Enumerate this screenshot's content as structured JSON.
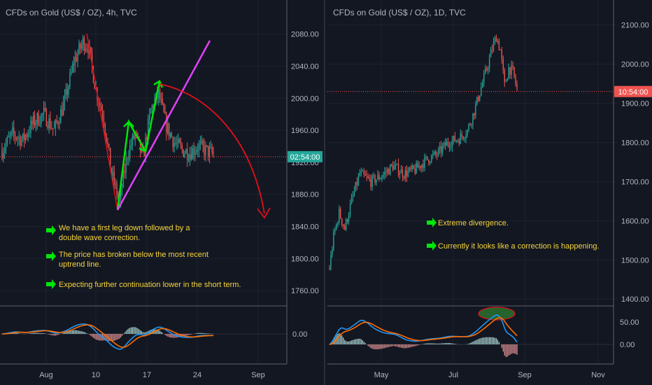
{
  "colors": {
    "background": "#131722",
    "grid": "#1e2230",
    "divider": "#5d606b",
    "axis_text": "#b2b5be",
    "candle_up": "#26a69a",
    "candle_down": "#ef5350",
    "price_line": "#ef5350",
    "price_label_left": "#26a69a",
    "price_label_right": "#ef5350",
    "macd": "#2196f3",
    "signal": "#ff6d00",
    "annotation_text": "#f5d43b",
    "arrow_green": "#00e60a",
    "drawing_red": "#e0101a",
    "drawing_magenta": "#e040fb",
    "drawing_green": "#00e60a",
    "ellipse_fill": "#2e7d32"
  },
  "chart_data": [
    {
      "type": "candlestick",
      "title": "CFDs on Gold (US$ / OZ), 4h, TVC",
      "x_tick_labels": [
        "Aug",
        "10",
        "17",
        "24",
        "Sep"
      ],
      "y_tick_values": [
        1760,
        1800,
        1840,
        1880,
        1920,
        1960,
        2000,
        2040,
        2080
      ],
      "y_tick_labels": [
        "1760.00",
        "1800.00",
        "1840.00",
        "1880.00",
        "1920.00",
        "1960.00",
        "2000.00",
        "2040.00",
        "2080.00"
      ],
      "ylim": [
        1747,
        2105
      ],
      "current_price": 1927,
      "price_label": "02:54:00",
      "indicator_tick_labels": [
        "0.00"
      ],
      "annotations": [
        "We have a first leg down followed by a",
        "double wave correction.",
        "The price has broken below the most recent",
        "uptrend line.",
        "Expecting further continuation lower in the short term."
      ],
      "path_anchors": [
        {
          "i": 0,
          "price": 1935
        },
        {
          "i": 8,
          "price": 1955
        },
        {
          "i": 16,
          "price": 1948
        },
        {
          "i": 24,
          "price": 1970
        },
        {
          "i": 32,
          "price": 1980
        },
        {
          "i": 40,
          "price": 1960
        },
        {
          "i": 48,
          "price": 1995
        },
        {
          "i": 55,
          "price": 2045
        },
        {
          "i": 62,
          "price": 2070
        },
        {
          "i": 66,
          "price": 2065
        },
        {
          "i": 72,
          "price": 2010
        },
        {
          "i": 78,
          "price": 1975
        },
        {
          "i": 84,
          "price": 1905
        },
        {
          "i": 90,
          "price": 1870
        },
        {
          "i": 96,
          "price": 1930
        },
        {
          "i": 102,
          "price": 1955
        },
        {
          "i": 108,
          "price": 1925
        },
        {
          "i": 114,
          "price": 1985
        },
        {
          "i": 120,
          "price": 2005
        },
        {
          "i": 126,
          "price": 1965
        },
        {
          "i": 132,
          "price": 1945
        },
        {
          "i": 138,
          "price": 1935
        },
        {
          "i": 144,
          "price": 1932
        },
        {
          "i": 150,
          "price": 1940
        },
        {
          "i": 156,
          "price": 1935
        },
        {
          "i": 162,
          "price": 1930
        }
      ]
    },
    {
      "type": "candlestick",
      "title": "CFDs on Gold (US$ / OZ), 1D, TVC",
      "x_tick_labels": [
        "May",
        "Jul",
        "Sep",
        "Nov"
      ],
      "y_tick_values": [
        1400,
        1500,
        1600,
        1700,
        1800,
        1900,
        2000,
        2100
      ],
      "y_tick_labels": [
        "1400.00",
        "1500.00",
        "1600.00",
        "1700.00",
        "1800.00",
        "1900.00",
        "2000.00",
        "2100.00"
      ],
      "ylim": [
        1395,
        2128
      ],
      "current_price": 1930,
      "price_label": "10:54:00",
      "indicator_tick_labels": [
        "50.00",
        "0.00"
      ],
      "annotations": [
        "Extreme divergence.",
        "Currently it looks like a correction is happening."
      ],
      "path_anchors": [
        {
          "i": 0,
          "price": 1480
        },
        {
          "i": 3,
          "price": 1560
        },
        {
          "i": 7,
          "price": 1620
        },
        {
          "i": 11,
          "price": 1580
        },
        {
          "i": 16,
          "price": 1650
        },
        {
          "i": 22,
          "price": 1720
        },
        {
          "i": 30,
          "price": 1700
        },
        {
          "i": 38,
          "price": 1715
        },
        {
          "i": 46,
          "price": 1740
        },
        {
          "i": 54,
          "price": 1720
        },
        {
          "i": 62,
          "price": 1730
        },
        {
          "i": 70,
          "price": 1755
        },
        {
          "i": 78,
          "price": 1770
        },
        {
          "i": 86,
          "price": 1800
        },
        {
          "i": 94,
          "price": 1810
        },
        {
          "i": 100,
          "price": 1830
        },
        {
          "i": 105,
          "price": 1880
        },
        {
          "i": 110,
          "price": 1940
        },
        {
          "i": 115,
          "price": 2000
        },
        {
          "i": 118,
          "price": 2040
        },
        {
          "i": 121,
          "price": 2070
        },
        {
          "i": 124,
          "price": 2035
        },
        {
          "i": 127,
          "price": 1945
        },
        {
          "i": 130,
          "price": 1990
        },
        {
          "i": 133,
          "price": 1980
        },
        {
          "i": 136,
          "price": 1935
        }
      ]
    }
  ]
}
